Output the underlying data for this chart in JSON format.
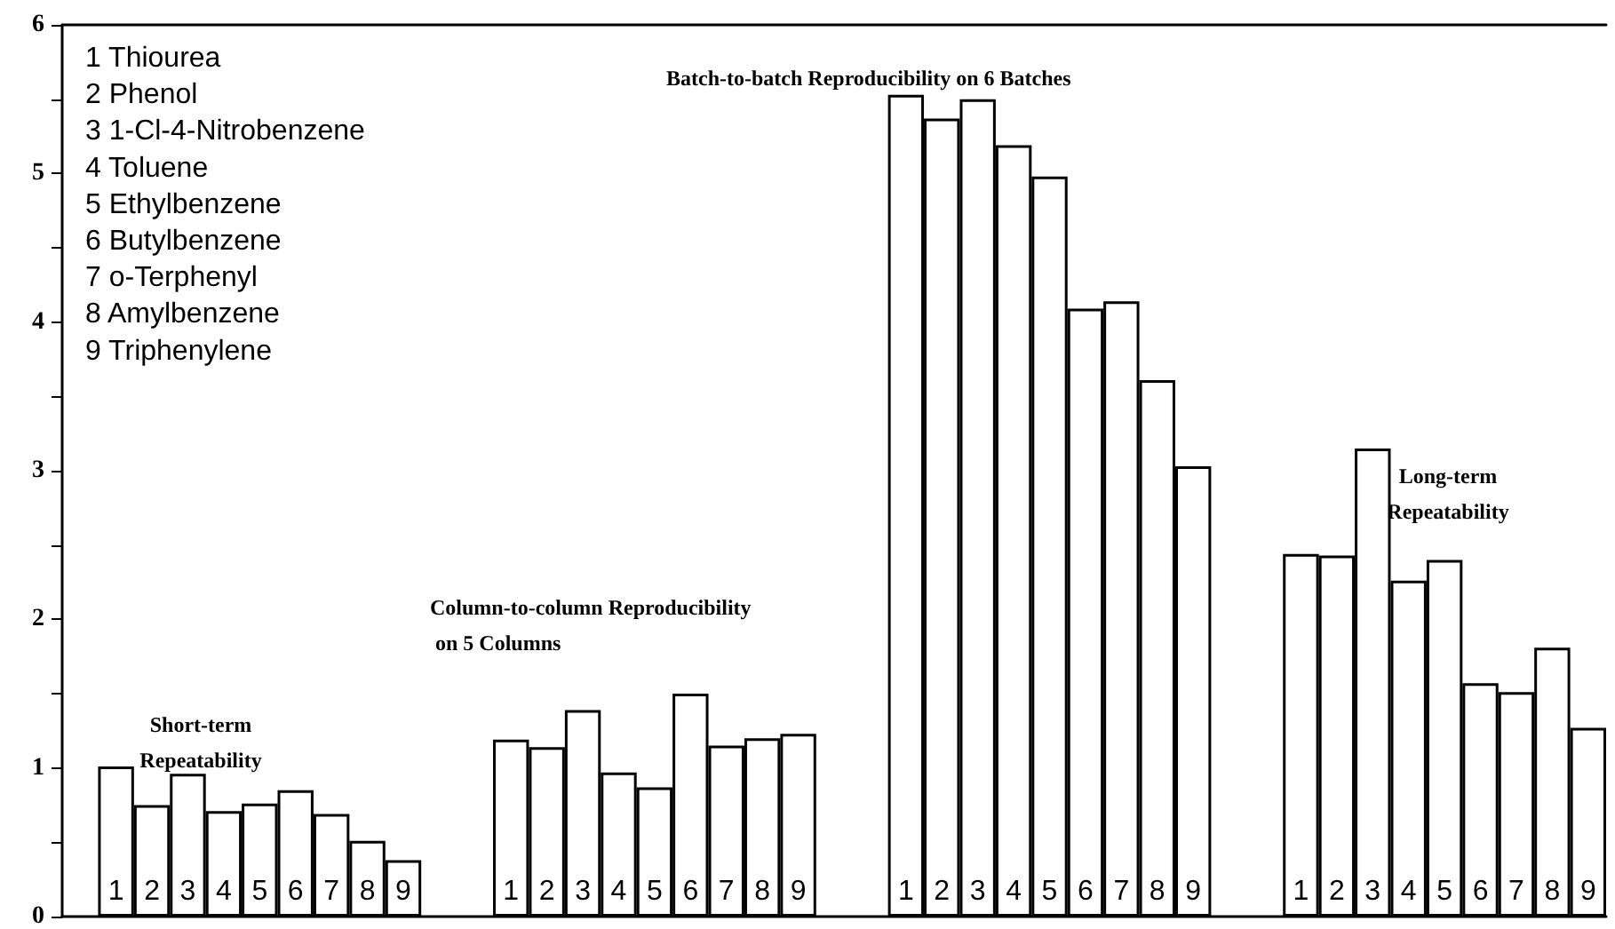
{
  "chart_data": {
    "type": "bar",
    "categories": [
      null,
      "1",
      "2",
      "3",
      "4",
      "5",
      "6",
      "7",
      "8",
      "9",
      null,
      null,
      "1",
      "2",
      "3",
      "4",
      "5",
      "6",
      "7",
      "8",
      "9",
      null,
      null,
      "1",
      "2",
      "3",
      "4",
      "5",
      "6",
      "7",
      "8",
      "9",
      null,
      null,
      "1",
      "2",
      "3",
      "4",
      "5",
      "6",
      "7",
      "8",
      "9"
    ],
    "values": [
      null,
      1.01,
      0.75,
      0.96,
      0.71,
      0.76,
      0.85,
      0.69,
      0.51,
      0.38,
      null,
      null,
      1.19,
      1.14,
      1.39,
      0.97,
      0.87,
      1.5,
      1.15,
      1.2,
      1.23,
      null,
      null,
      5.53,
      5.37,
      5.5,
      5.19,
      4.98,
      4.09,
      4.14,
      3.61,
      3.03,
      null,
      null,
      2.44,
      2.43,
      3.15,
      2.26,
      2.4,
      1.57,
      1.51,
      1.81,
      1.27
    ],
    "color": "#ffffff",
    "ylim": [
      0,
      6
    ],
    "yticks": [
      0,
      {
        "value": 0.5,
        "label": null
      },
      1,
      {
        "value": 1.5,
        "label": null
      },
      2,
      {
        "value": 2.5,
        "label": null
      },
      3,
      {
        "value": 3.5,
        "label": null
      },
      4,
      {
        "value": 4.5,
        "label": null
      },
      5,
      {
        "value": 5.5,
        "label": null
      },
      6
    ],
    "grid": false,
    "annotations": [
      "1 Thiourea",
      "2 Phenol",
      "3 1-Cl-4-Nitrobenzene",
      "4 Toluene",
      "5 Ethylbenzene",
      "6 Butylbenzene",
      "7 o-Terphenyl",
      "8 Amylbenzene",
      "9 Triphenylene",
      "Short-term\nRepeatability",
      "Column-to-column Reproducibility\n on 5 Columns",
      "Batch-to-batch Reproducibility on 6 Batches",
      "Long-term\nRepeatability"
    ]
  }
}
